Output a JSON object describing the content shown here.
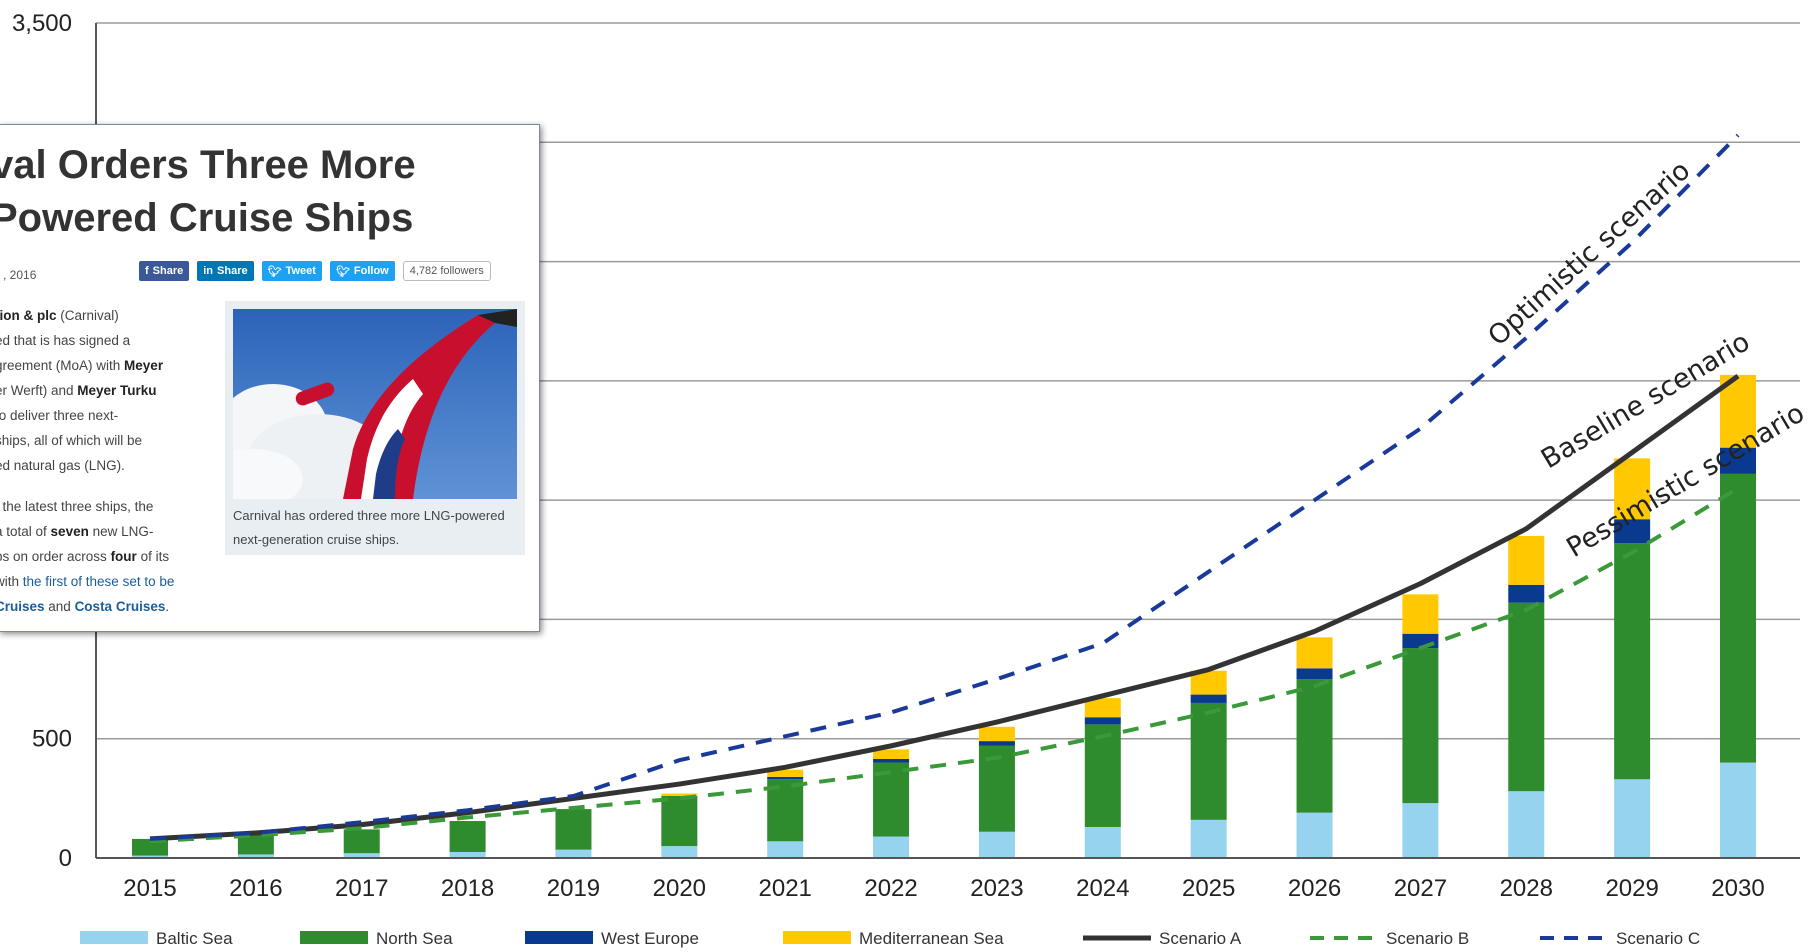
{
  "chart_data": {
    "type": "bar",
    "stacked": true,
    "categories": [
      "2015",
      "2016",
      "2017",
      "2018",
      "2019",
      "2020",
      "2021",
      "2022",
      "2023",
      "2024",
      "2025",
      "2026",
      "2027",
      "2028",
      "2029",
      "2030"
    ],
    "ylim": [
      0,
      3500
    ],
    "yticks_visible": [
      {
        "value": 3500,
        "label": "3,500"
      },
      {
        "value": 500,
        "label": "500"
      },
      {
        "value": 0,
        "label": "0"
      }
    ],
    "gridlines": [
      0,
      500,
      1000,
      1500,
      2000,
      2500,
      3000,
      3500
    ],
    "grid": true,
    "series": [
      {
        "name": "Baltic Sea",
        "kind": "bar",
        "color": "#95d3ee",
        "values": [
          10,
          15,
          20,
          25,
          35,
          50,
          70,
          90,
          110,
          130,
          160,
          190,
          230,
          280,
          330,
          400
        ]
      },
      {
        "name": "North Sea",
        "kind": "bar",
        "color": "#2e8b2e",
        "values": [
          70,
          85,
          100,
          130,
          170,
          210,
          260,
          310,
          360,
          430,
          490,
          560,
          650,
          790,
          990,
          1210
        ]
      },
      {
        "name": "West Europe",
        "kind": "bar",
        "color": "#0a3a8f",
        "values": [
          0,
          0,
          0,
          0,
          0,
          0,
          10,
          15,
          20,
          30,
          35,
          45,
          60,
          75,
          100,
          110
        ]
      },
      {
        "name": "Mediterranean Sea",
        "kind": "bar",
        "color": "#ffc800",
        "values": [
          0,
          0,
          0,
          0,
          0,
          10,
          30,
          40,
          60,
          80,
          100,
          130,
          165,
          205,
          255,
          305
        ]
      },
      {
        "name": "Scenario A",
        "kind": "line",
        "style": "solid",
        "color": "#333333",
        "values": [
          80,
          105,
          140,
          190,
          250,
          310,
          380,
          470,
          570,
          680,
          790,
          950,
          1150,
          1380,
          1700,
          2020
        ]
      },
      {
        "name": "Scenario B",
        "kind": "line",
        "style": "dashed",
        "color": "#3a9a3a",
        "values": [
          70,
          95,
          125,
          170,
          210,
          250,
          300,
          360,
          420,
          510,
          610,
          720,
          880,
          1040,
          1280,
          1550
        ]
      },
      {
        "name": "Scenario C",
        "kind": "line",
        "style": "dashed",
        "color": "#1a3a9a",
        "values": [
          80,
          105,
          150,
          200,
          260,
          410,
          510,
          610,
          750,
          900,
          1200,
          1500,
          1800,
          2180,
          2580,
          3030
        ]
      }
    ],
    "annotations": [
      "Optimistic scenario",
      "Baseline scenario",
      "Pessimistic scenario"
    ],
    "legend_position": "bottom"
  },
  "article": {
    "title_line1": "val Orders Three More",
    "title_line2": "Powered Cruise Ships",
    "date": ", 2016",
    "share_facebook": "Share",
    "share_linkedin": "Share",
    "tweet": "Tweet",
    "follow": "Follow",
    "followers": "4,782 followers",
    "p1": {
      "l1a": "tion & plc",
      "l1b": " (Carnival)",
      "l2": "ed that is has signed a",
      "l3a": "greement (MoA) with ",
      "l3b": "Meyer",
      "l4a": "er Werft) and ",
      "l4b": "Meyer Turku",
      "l5": "to deliver three next-",
      "l6": "ships, all of which will be",
      "l7": "ed natural gas (LNG)."
    },
    "p2": {
      "l1": "f the latest three ships, the",
      "l2a": "a total of ",
      "l2b": "seven",
      "l2c": " new LNG-",
      "l3a": "ps on order across ",
      "l3b": "four",
      "l3c": " of its",
      "l4a": "with ",
      "l4b": "the first of these set to be",
      "l5a": "Cruises",
      "l5b": " and ",
      "l5c": "Costa Cruises",
      "l5d": "."
    },
    "photo_caption": "Carnival has ordered three more LNG-powered next-generation cruise ships."
  }
}
